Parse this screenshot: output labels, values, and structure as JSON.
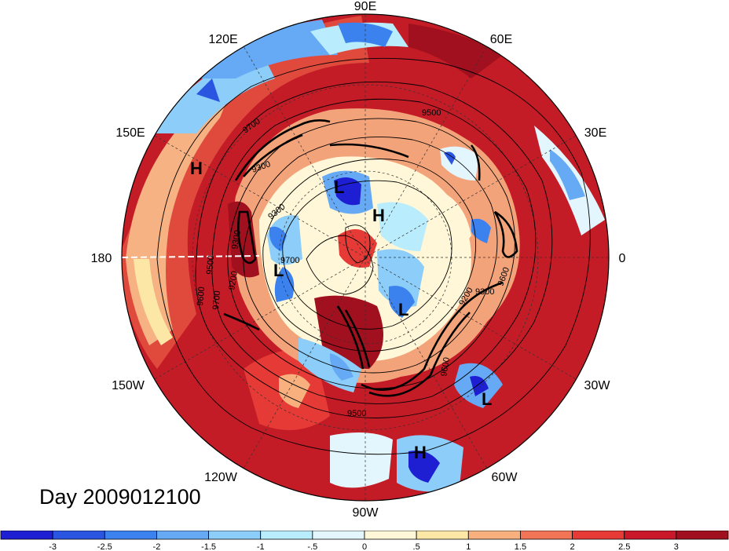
{
  "title": "Day 2009012100",
  "longitude_labels": [
    "90E",
    "60E",
    "30E",
    "0",
    "30W",
    "60W",
    "90W",
    "120W",
    "150W",
    "180",
    "150E",
    "120E"
  ],
  "pressure_systems": [
    {
      "type": "H",
      "label": "H"
    },
    {
      "type": "L",
      "label": "L"
    },
    {
      "type": "H",
      "label": "H"
    },
    {
      "type": "L",
      "label": "L"
    },
    {
      "type": "L",
      "label": "L"
    },
    {
      "type": "L",
      "label": "L"
    },
    {
      "type": "H",
      "label": "H"
    }
  ],
  "contour_labels": [
    "9700",
    "9500",
    "9300",
    "9200",
    "9300",
    "9300",
    "9500",
    "9600",
    "9700",
    "9700",
    "9200",
    "9300",
    "9500",
    "9600",
    "9600"
  ],
  "colorbar": {
    "colors": [
      "#1e1ed2",
      "#2a55e0",
      "#3c82ee",
      "#66aaf5",
      "#8ccdfa",
      "#b9ecfc",
      "#e4f6fd",
      "#fff7d7",
      "#fde7a7",
      "#f7b07e",
      "#f07455",
      "#e53a35",
      "#c8182a",
      "#a0101e"
    ],
    "tick_labels": [
      "-3",
      "-2.5",
      "-2",
      "-1.5",
      "-1",
      "-.5",
      "0",
      ".5",
      "1",
      "1.5",
      "2",
      "2.5",
      "3"
    ]
  },
  "colors": {
    "ocean_red": "#b0141f",
    "mid_red": "#e53a35",
    "blue": "#3c82ee"
  }
}
